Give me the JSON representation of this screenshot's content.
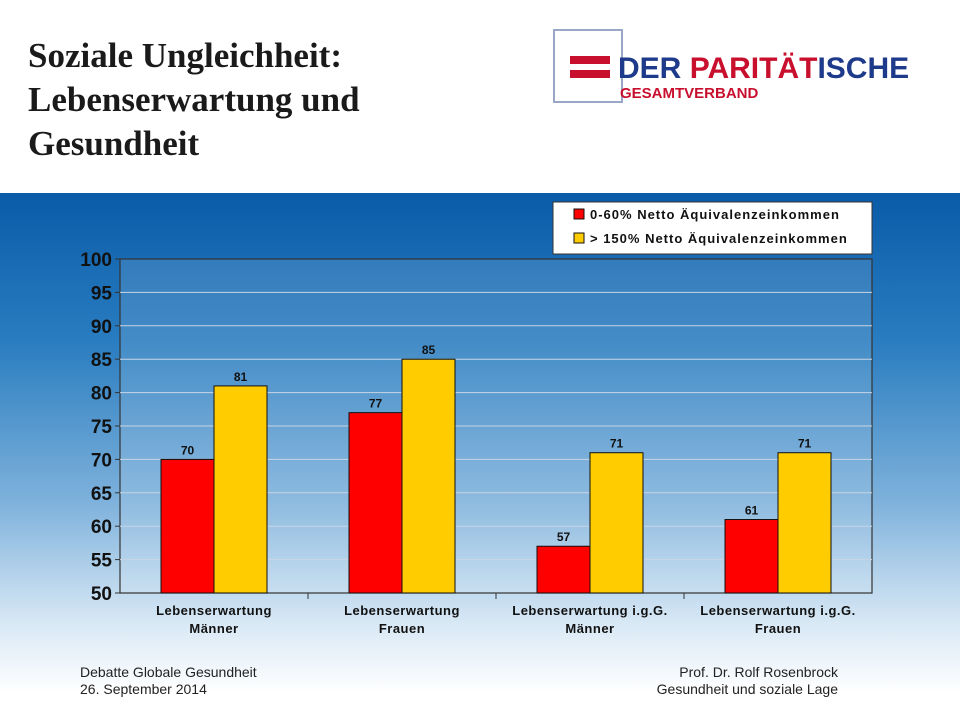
{
  "title": {
    "line1": "Soziale Ungleichheit:",
    "line2": "Lebenserwartung und",
    "line3": "Gesundheit"
  },
  "logo": {
    "line1_dark": "DER ",
    "line1_red": "PARITÄT",
    "line1_end": "ISCHE",
    "line2": "GESAMTVERBAND",
    "red": "#c8102e",
    "blue": "#1e3a8a"
  },
  "chart_data": {
    "type": "bar",
    "categories": [
      [
        "Lebenserwartung",
        "Männer"
      ],
      [
        "Lebenserwartung",
        "Frauen"
      ],
      [
        "Lebenserwartung i.g.G.",
        "Männer"
      ],
      [
        "Lebenserwartung i.g.G.",
        "Frauen"
      ]
    ],
    "series": [
      {
        "name": "0-60% Netto Äquivalenzeinkommen",
        "color": "#ff0000",
        "values": [
          70,
          77,
          57,
          61
        ]
      },
      {
        "name": "> 150% Netto Äquivalenzeinkommen",
        "color": "#ffcc00",
        "values": [
          81,
          85,
          71,
          71
        ]
      }
    ],
    "ylim": [
      50,
      100
    ],
    "yticks": [
      100,
      95,
      90,
      85,
      80,
      75,
      70,
      65,
      60,
      55,
      50
    ],
    "grid": true,
    "legend_position": "top-right",
    "data_labels": true
  },
  "footer": {
    "left_line1": "Debatte Globale Gesundheit",
    "left_line2": "26. September 2014",
    "right_line1": "Prof. Dr. Rolf Rosenbrock",
    "right_line2": "Gesundheit und soziale Lage"
  }
}
